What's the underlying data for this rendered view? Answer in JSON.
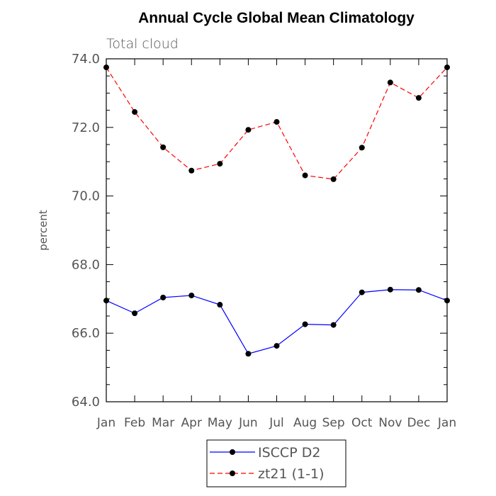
{
  "chart_data": {
    "type": "line",
    "title": "Annual Cycle Global Mean Climatology",
    "subtitle": "Total cloud",
    "xlabel": "",
    "ylabel": "percent",
    "categories": [
      "Jan",
      "Feb",
      "Mar",
      "Apr",
      "May",
      "Jun",
      "Jul",
      "Aug",
      "Sep",
      "Oct",
      "Nov",
      "Dec",
      "Jan"
    ],
    "ylim": [
      64.0,
      74.0
    ],
    "y_ticks": [
      "64.0",
      "66.0",
      "68.0",
      "70.0",
      "72.0",
      "74.0"
    ],
    "y_tick_values": [
      64,
      66,
      68,
      70,
      72,
      74
    ],
    "grid": false,
    "legend_position": "bottom-center",
    "series": [
      {
        "name": "ISCCP D2",
        "color": "#0000ff",
        "line_style": "solid",
        "marker": "filled-circle",
        "values": [
          66.95,
          66.58,
          67.04,
          67.1,
          66.83,
          65.4,
          65.63,
          66.26,
          66.24,
          67.19,
          67.27,
          67.26,
          66.95
        ]
      },
      {
        "name": "zt21 (1-1)",
        "color": "#ff0000",
        "line_style": "dashed",
        "marker": "filled-circle",
        "values": [
          73.75,
          72.45,
          71.42,
          70.74,
          70.94,
          71.93,
          72.16,
          70.6,
          70.49,
          71.41,
          73.31,
          72.86,
          73.75
        ]
      }
    ]
  }
}
